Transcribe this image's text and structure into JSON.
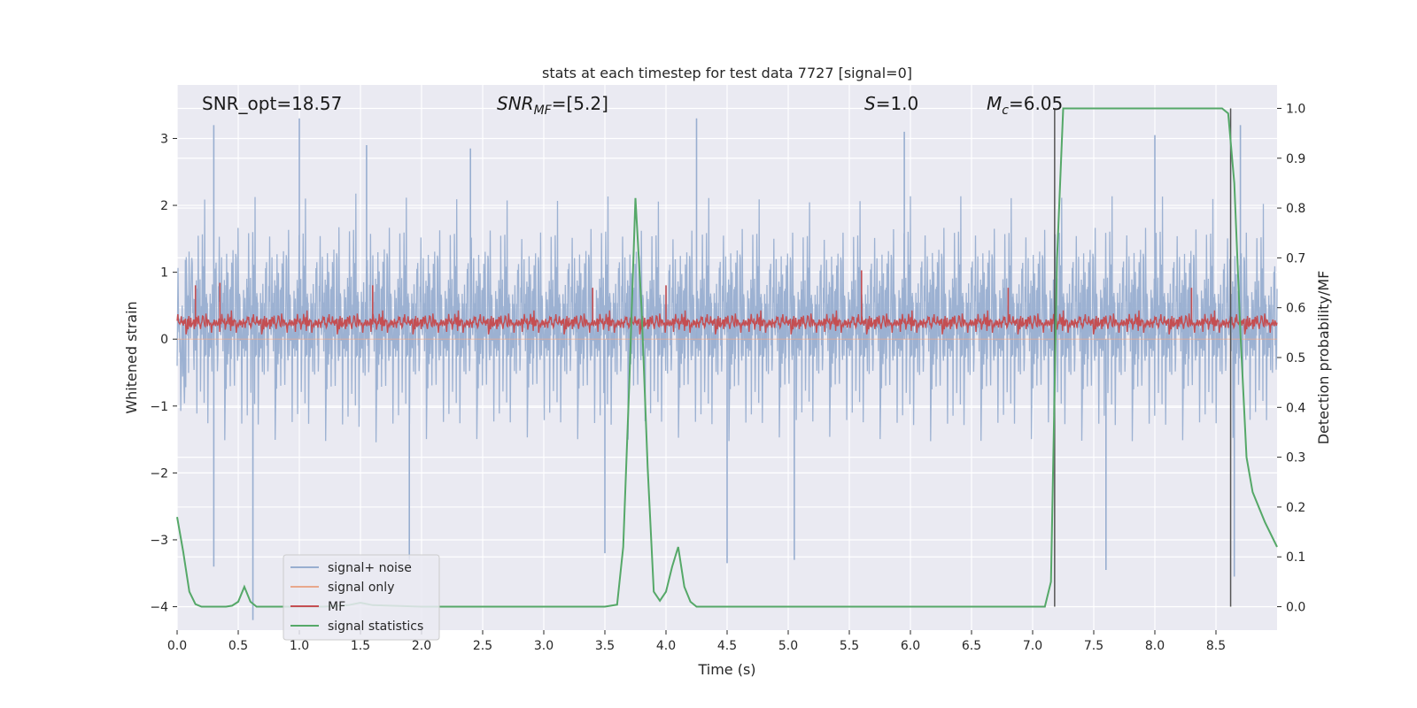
{
  "chart_data": {
    "type": "line",
    "title": "stats at each timestep for test data 7727 [signal=0]",
    "xlabel": "Time (s)",
    "ylabel": "Whitened strain",
    "y2label": "Detection probability/MF",
    "xlim": [
      0.0,
      9.0
    ],
    "ylim": [
      -4.35,
      3.8
    ],
    "y2lim": [
      -0.047,
      1.047
    ],
    "x_ticks": [
      "0.0",
      "0.5",
      "1.0",
      "1.5",
      "2.0",
      "2.5",
      "3.0",
      "3.5",
      "4.0",
      "4.5",
      "5.0",
      "5.5",
      "6.0",
      "6.5",
      "7.0",
      "7.5",
      "8.0",
      "8.5"
    ],
    "x_tick_values": [
      0.0,
      0.5,
      1.0,
      1.5,
      2.0,
      2.5,
      3.0,
      3.5,
      4.0,
      4.5,
      5.0,
      5.5,
      6.0,
      6.5,
      7.0,
      7.5,
      8.0,
      8.5
    ],
    "y_ticks": [
      "3",
      "2",
      "1",
      "0",
      "−1",
      "−2",
      "−3",
      "−4"
    ],
    "y_tick_values": [
      3,
      2,
      1,
      0,
      -1,
      -2,
      -3,
      -4
    ],
    "y2_ticks": [
      "1.0",
      "0.9",
      "0.8",
      "0.7",
      "0.6",
      "0.5",
      "0.4",
      "0.3",
      "0.2",
      "0.1",
      "0.0"
    ],
    "y2_tick_values": [
      1.0,
      0.9,
      0.8,
      0.7,
      0.6,
      0.5,
      0.4,
      0.3,
      0.2,
      0.1,
      0.0
    ],
    "grid": true,
    "legend_position": "lower-left",
    "annotations": {
      "snr_opt": "SNR_opt=18.57",
      "snr_mf_main": "SNR",
      "snr_mf_sub": "MF",
      "snr_mf_rest": "=[5.2]",
      "s_main": "S",
      "s_rest": "=1.0",
      "mc_main": "M",
      "mc_sub": "c",
      "mc_rest": "=6.05"
    },
    "series": [
      {
        "name": "signal+ noise",
        "color": "#98aed0",
        "axis": "left",
        "style": "noise",
        "envelope": {
          "x": [
            0.0,
            0.5,
            1.0,
            1.5,
            2.0,
            2.5,
            3.0,
            3.5,
            4.0,
            4.5,
            5.0,
            5.5,
            6.0,
            6.5,
            7.0,
            7.5,
            8.0,
            8.5,
            9.0
          ],
          "upper": [
            2.2,
            2.3,
            2.3,
            2.4,
            2.2,
            2.3,
            2.2,
            2.3,
            2.2,
            2.3,
            2.2,
            2.2,
            2.3,
            2.4,
            2.3,
            2.3,
            2.3,
            2.3,
            2.2
          ],
          "lower": [
            -2.3,
            -2.4,
            -2.3,
            -2.4,
            -2.4,
            -2.3,
            -2.3,
            -2.4,
            -2.3,
            -2.4,
            -2.3,
            -2.3,
            -2.4,
            -2.3,
            -2.3,
            -2.4,
            -2.4,
            -2.3,
            -2.2
          ]
        },
        "spikes": [
          {
            "x": 0.3,
            "y": 3.2
          },
          {
            "x": 1.0,
            "y": 3.3
          },
          {
            "x": 1.55,
            "y": 2.9
          },
          {
            "x": 2.4,
            "y": 2.85
          },
          {
            "x": 4.25,
            "y": 3.3
          },
          {
            "x": 5.95,
            "y": 3.1
          },
          {
            "x": 8.0,
            "y": 3.05
          },
          {
            "x": 8.7,
            "y": 3.2
          },
          {
            "x": 0.3,
            "y": -3.4
          },
          {
            "x": 0.62,
            "y": -4.2
          },
          {
            "x": 1.9,
            "y": -3.3
          },
          {
            "x": 3.5,
            "y": -3.2
          },
          {
            "x": 4.5,
            "y": -3.35
          },
          {
            "x": 5.05,
            "y": -3.3
          },
          {
            "x": 7.6,
            "y": -3.45
          },
          {
            "x": 8.65,
            "y": -3.55
          }
        ]
      },
      {
        "name": "signal only",
        "color": "#e8a88c",
        "axis": "left",
        "values_x": [
          0.0,
          9.0
        ],
        "values_y": [
          0.0,
          0.0
        ]
      },
      {
        "name": "MF",
        "color": "#c44e52",
        "axis": "right",
        "style": "noise",
        "band": [
          0.543,
          0.59
        ],
        "spikes": [
          {
            "x": 0.15,
            "y": 0.645
          },
          {
            "x": 0.35,
            "y": 0.65
          },
          {
            "x": 1.6,
            "y": 0.645
          },
          {
            "x": 3.4,
            "y": 0.64
          },
          {
            "x": 4.0,
            "y": 0.645
          },
          {
            "x": 5.6,
            "y": 0.675
          },
          {
            "x": 6.8,
            "y": 0.64
          },
          {
            "x": 8.3,
            "y": 0.64
          }
        ]
      },
      {
        "name": "signal statistics",
        "color": "#55a868",
        "axis": "right",
        "x": [
          0.0,
          0.05,
          0.1,
          0.15,
          0.2,
          0.3,
          0.4,
          0.45,
          0.5,
          0.55,
          0.6,
          0.65,
          0.7,
          0.8,
          0.9,
          1.0,
          1.2,
          1.4,
          1.5,
          1.6,
          2.0,
          2.5,
          3.0,
          3.5,
          3.6,
          3.65,
          3.7,
          3.75,
          3.8,
          3.85,
          3.9,
          3.95,
          4.0,
          4.05,
          4.1,
          4.15,
          4.2,
          4.25,
          4.3,
          4.5,
          5.0,
          5.5,
          6.0,
          6.5,
          7.0,
          7.1,
          7.15,
          7.2,
          7.25,
          7.3,
          7.5,
          8.0,
          8.4,
          8.55,
          8.6,
          8.65,
          8.7,
          8.75,
          8.8,
          8.9,
          9.0
        ],
        "y": [
          0.18,
          0.11,
          0.03,
          0.005,
          0.0,
          0.0,
          0.0,
          0.002,
          0.01,
          0.04,
          0.01,
          0.0,
          0.0,
          0.0,
          0.0,
          0.0,
          0.0,
          0.003,
          0.008,
          0.003,
          0.0,
          0.0,
          0.0,
          0.0,
          0.004,
          0.12,
          0.45,
          0.82,
          0.6,
          0.28,
          0.03,
          0.012,
          0.03,
          0.08,
          0.12,
          0.04,
          0.01,
          0.0,
          0.0,
          0.0,
          0.0,
          0.0,
          0.0,
          0.0,
          0.0,
          0.0,
          0.05,
          0.7,
          1.0,
          1.0,
          1.0,
          1.0,
          1.0,
          1.0,
          0.99,
          0.85,
          0.55,
          0.3,
          0.23,
          0.17,
          0.12
        ]
      }
    ],
    "vlines": [
      {
        "x": 7.18,
        "y_from": 0.0,
        "y_to": 1.0
      },
      {
        "x": 8.62,
        "y_from": 0.0,
        "y_to": 1.0
      }
    ]
  }
}
